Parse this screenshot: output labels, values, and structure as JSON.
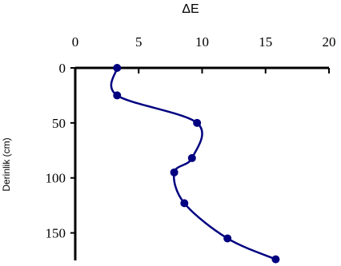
{
  "chart_data": {
    "type": "line",
    "title": "",
    "xlabel": "ΔE",
    "ylabel": "Derinlik (cm)",
    "x_axis_position": "top",
    "y_axis_inverted": true,
    "xlim": [
      0,
      20
    ],
    "ylim": [
      0,
      175
    ],
    "x_ticks": [
      0,
      5,
      10,
      15,
      20
    ],
    "y_ticks": [
      0,
      50,
      100,
      150
    ],
    "grid": false,
    "series": [
      {
        "color": "#000080",
        "marker": "circle",
        "smooth": true,
        "points": [
          {
            "x": 3.3,
            "y": 0
          },
          {
            "x": 3.3,
            "y": 25
          },
          {
            "x": 9.6,
            "y": 50
          },
          {
            "x": 9.2,
            "y": 82
          },
          {
            "x": 7.8,
            "y": 95
          },
          {
            "x": 8.6,
            "y": 123
          },
          {
            "x": 12.0,
            "y": 155
          },
          {
            "x": 15.8,
            "y": 174
          }
        ]
      }
    ]
  }
}
